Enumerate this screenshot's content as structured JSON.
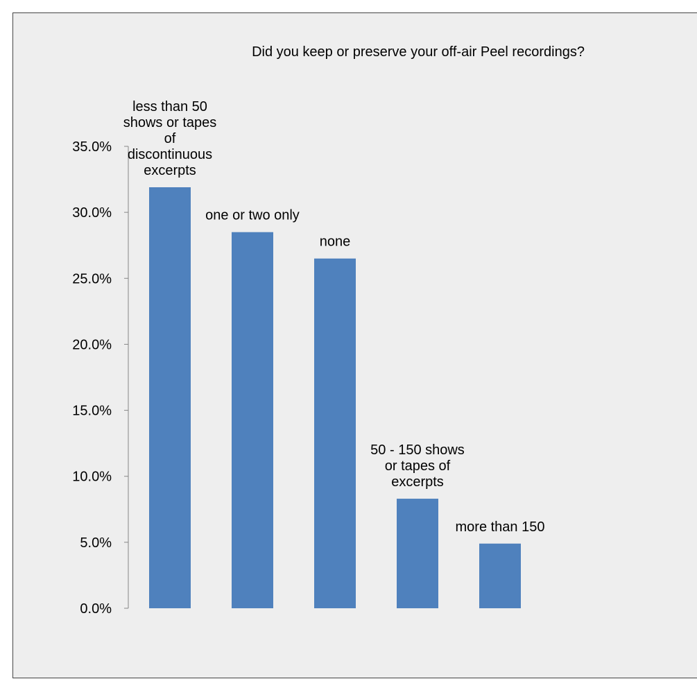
{
  "chart_data": {
    "type": "bar",
    "title": "Did you keep or preserve your off-air Peel recordings?",
    "xlabel": "",
    "ylabel": "",
    "ylim": [
      0,
      35
    ],
    "yticks": [
      "0.0%",
      "5.0%",
      "10.0%",
      "15.0%",
      "20.0%",
      "25.0%",
      "30.0%",
      "35.0%"
    ],
    "grid": false,
    "legend": "none",
    "colors": {
      "bar": "#4f81bd",
      "axis": "#868686",
      "background": "#eeeeee"
    },
    "categories": [
      "less than 50 shows or tapes of discontinuous excerpts",
      "one or two only",
      "none",
      "50 - 150 shows or tapes of excerpts",
      "more than 150"
    ],
    "category_lines": [
      [
        "less than 50",
        "shows or tapes",
        "of",
        "discontinuous",
        "excerpts"
      ],
      [
        "one or two only"
      ],
      [
        "none"
      ],
      [
        "50 - 150 shows",
        "or tapes of",
        "excerpts"
      ],
      [
        "more than 150"
      ]
    ],
    "values": [
      31.9,
      28.5,
      26.5,
      8.3,
      4.9
    ]
  }
}
